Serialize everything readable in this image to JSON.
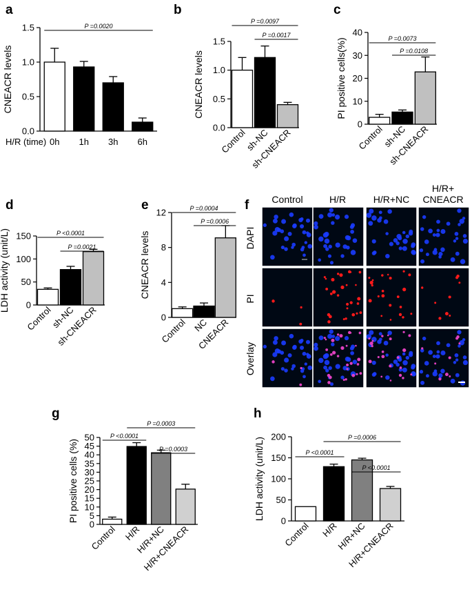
{
  "panels": {
    "a": "a",
    "b": "b",
    "c": "c",
    "d": "d",
    "e": "e",
    "f": "f",
    "g": "g",
    "h": "h"
  },
  "micrograph": {
    "columns": [
      "Control",
      "H/R",
      "H/R+NC",
      "H/R+\nCNEACR"
    ],
    "rows": [
      "DAPI",
      "PI",
      "Overlay"
    ],
    "colors": {
      "dapi": "#1a3cff",
      "pi": "#ff1a1a",
      "background": "#000814"
    }
  },
  "chart_data": [
    {
      "id": "a",
      "type": "bar",
      "ylabel": "CNEACR levels",
      "xlabel": "H/R (time)",
      "categories": [
        "0h",
        "1h",
        "3h",
        "6h"
      ],
      "values": [
        1.0,
        0.93,
        0.7,
        0.13
      ],
      "errors": [
        0.2,
        0.08,
        0.09,
        0.06
      ],
      "fills": [
        "#ffffff",
        "#000000",
        "#000000",
        "#000000"
      ],
      "ylim": [
        0,
        1.5
      ],
      "yticks": [
        0.0,
        0.5,
        1.0,
        1.5
      ],
      "ytick_labels": [
        "0.0",
        "0.5",
        "1.0",
        "1.5"
      ],
      "brackets": [
        {
          "from": 0,
          "to": 3,
          "text": "P =0.0020"
        }
      ]
    },
    {
      "id": "b",
      "type": "bar",
      "ylabel": "CNEACR levels",
      "categories": [
        "Control",
        "sh-NC",
        "sh-CNEACR"
      ],
      "values": [
        1.0,
        1.22,
        0.4
      ],
      "errors": [
        0.22,
        0.2,
        0.04
      ],
      "fills": [
        "#ffffff",
        "#000000",
        "#c0c0c0"
      ],
      "ylim": [
        0,
        1.5
      ],
      "yticks": [
        0.0,
        0.5,
        1.0,
        1.5
      ],
      "ytick_labels": [
        "0.0",
        "0.5",
        "1.0",
        "1.5"
      ],
      "brackets": [
        {
          "from": 0,
          "to": 2,
          "text": "P =0.0097"
        },
        {
          "from": 1,
          "to": 2,
          "text": "P =0.0017"
        }
      ]
    },
    {
      "id": "c",
      "type": "bar",
      "ylabel": "PI positive cells(%)",
      "categories": [
        "Control",
        "sh-NC",
        "sh-CNEACR"
      ],
      "values": [
        3.0,
        5.3,
        22.8
      ],
      "errors": [
        1.3,
        0.9,
        6.5
      ],
      "fills": [
        "#ffffff",
        "#000000",
        "#c0c0c0"
      ],
      "ylim": [
        0,
        40
      ],
      "yticks": [
        0,
        10,
        20,
        30,
        40
      ],
      "ytick_labels": [
        "0",
        "10",
        "20",
        "30",
        "40"
      ],
      "brackets": [
        {
          "from": 0,
          "to": 2,
          "text": "P =0.0073"
        },
        {
          "from": 1,
          "to": 2,
          "text": "P =0.0108"
        }
      ]
    },
    {
      "id": "d",
      "type": "bar",
      "ylabel": "LDH activity (unit/L)",
      "categories": [
        "Control",
        "sh-NC",
        "sh-CNEACR"
      ],
      "values": [
        34,
        77,
        116
      ],
      "errors": [
        3,
        7,
        5
      ],
      "fills": [
        "#ffffff",
        "#000000",
        "#c0c0c0"
      ],
      "ylim": [
        0,
        150
      ],
      "yticks": [
        0,
        50,
        100,
        150
      ],
      "ytick_labels": [
        "0",
        "50",
        "100",
        "150"
      ],
      "brackets": [
        {
          "from": 0,
          "to": 2,
          "text": "P <0.0001"
        },
        {
          "from": 1,
          "to": 2,
          "text": "P =0.0021"
        }
      ]
    },
    {
      "id": "e",
      "type": "bar",
      "ylabel": "CNEACR levels",
      "categories": [
        "Control",
        "NC",
        "CNEACR"
      ],
      "values": [
        1.0,
        1.3,
        9.1
      ],
      "errors": [
        0.2,
        0.35,
        1.4
      ],
      "fills": [
        "#ffffff",
        "#000000",
        "#c0c0c0"
      ],
      "ylim": [
        0,
        12
      ],
      "yticks": [
        0,
        4,
        8,
        12
      ],
      "ytick_labels": [
        "0",
        "4",
        "8",
        "12"
      ],
      "brackets": [
        {
          "from": 0,
          "to": 2,
          "text": "P =0.0004"
        },
        {
          "from": 1,
          "to": 2,
          "text": "P =0.0006"
        }
      ]
    },
    {
      "id": "g",
      "type": "bar",
      "ylabel": "PI positive cells (%)",
      "categories": [
        "Control",
        "H/R",
        "H/R+NC",
        "H/R+CNEACR"
      ],
      "values": [
        3.0,
        44.8,
        41.2,
        20.3
      ],
      "errors": [
        1.2,
        2.2,
        1.5,
        2.8
      ],
      "fills": [
        "#ffffff",
        "#000000",
        "#808080",
        "#d0d0d0"
      ],
      "ylim": [
        0,
        50
      ],
      "yticks": [
        0,
        5,
        10,
        15,
        20,
        25,
        30,
        35,
        40,
        45,
        50
      ],
      "ytick_labels": [
        "0",
        "5",
        "10",
        "15",
        "20",
        "25",
        "30",
        "35",
        "40",
        "45",
        "50"
      ],
      "brackets": [
        {
          "from": 1,
          "to": 3,
          "text": "P =0.0003"
        },
        {
          "from": 0,
          "to": 1,
          "text": "P <0.0001"
        },
        {
          "from": 2,
          "to": 3,
          "text": "P =0.0003"
        }
      ]
    },
    {
      "id": "h",
      "type": "bar",
      "ylabel": "LDH activity (unit/L)",
      "categories": [
        "Control",
        "H/R",
        "H/R+NC",
        "H/R+CNEACR"
      ],
      "values": [
        34,
        129,
        145,
        77
      ],
      "errors": [
        0,
        6,
        4,
        5
      ],
      "fills": [
        "#ffffff",
        "#000000",
        "#808080",
        "#d0d0d0"
      ],
      "ylim": [
        0,
        200
      ],
      "yticks": [
        0,
        50,
        100,
        150,
        200
      ],
      "ytick_labels": [
        "0",
        "50",
        "100",
        "150",
        "200"
      ],
      "brackets": [
        {
          "from": 1,
          "to": 3,
          "text": "P =0.0006"
        },
        {
          "from": 0,
          "to": 1,
          "text": "P <0.0001"
        },
        {
          "from": 2,
          "to": 3,
          "text": "P <0.0001"
        }
      ]
    }
  ]
}
